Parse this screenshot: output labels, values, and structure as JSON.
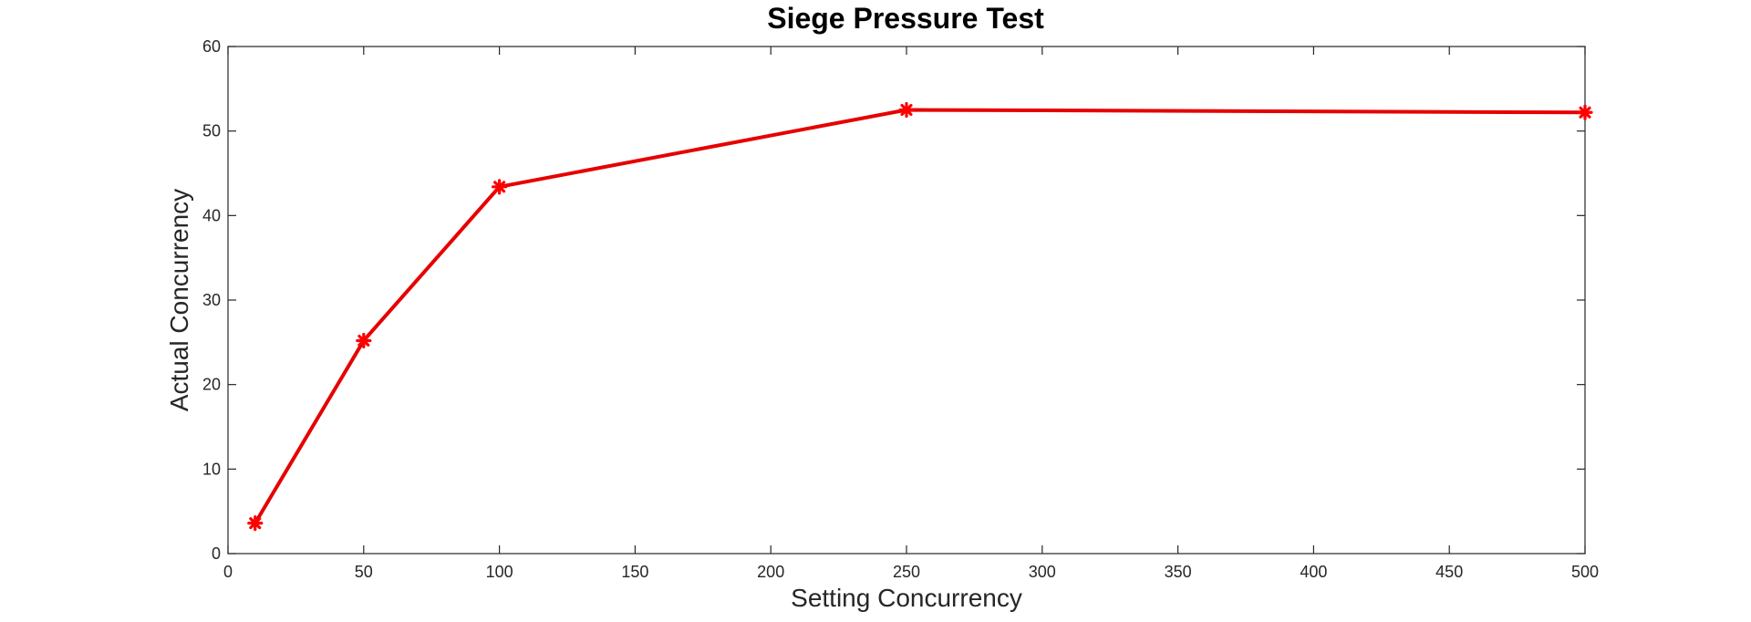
{
  "chart_data": {
    "type": "line",
    "title": "Siege Pressure Test",
    "xlabel": "Setting Concurrency",
    "ylabel": "Actual Concurrency",
    "xlim": [
      0,
      500
    ],
    "ylim": [
      0,
      60
    ],
    "xticks": [
      0,
      50,
      100,
      150,
      200,
      250,
      300,
      350,
      400,
      450,
      500
    ],
    "yticks": [
      0,
      10,
      20,
      30,
      40,
      50,
      60
    ],
    "grid": false,
    "series": [
      {
        "x": [
          10,
          50,
          100,
          250,
          500
        ],
        "y": [
          3.6,
          25.2,
          43.4,
          52.5,
          52.2
        ],
        "color": "#e60000",
        "marker": "asterisk"
      }
    ]
  }
}
